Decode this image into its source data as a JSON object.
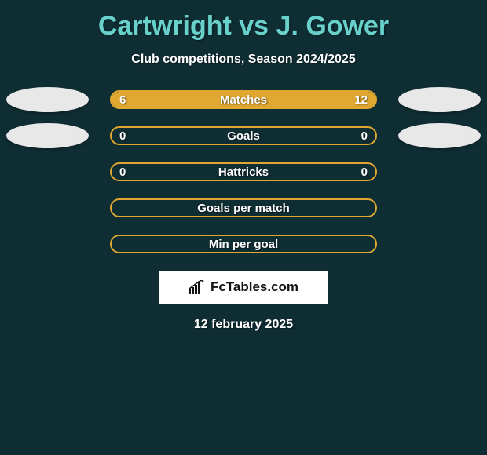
{
  "title": "Cartwright vs J. Gower",
  "subtitle": "Club competitions, Season 2024/2025",
  "date": "12 february 2025",
  "logo_text": "FcTables.com",
  "colors": {
    "background": "#0f2e34",
    "title": "#69d1cc",
    "bar_border": "#e0a830",
    "bar_fill": "#e0a830",
    "text": "#ffffff",
    "avatar": "#e8e8e8"
  },
  "stats": [
    {
      "label": "Matches",
      "left_value": "6",
      "right_value": "12",
      "left_pct": 33,
      "right_pct": 67,
      "show_left_avatar": true,
      "show_right_avatar": true
    },
    {
      "label": "Goals",
      "left_value": "0",
      "right_value": "0",
      "left_pct": 0,
      "right_pct": 0,
      "show_left_avatar": true,
      "show_right_avatar": true
    },
    {
      "label": "Hattricks",
      "left_value": "0",
      "right_value": "0",
      "left_pct": 0,
      "right_pct": 0,
      "show_left_avatar": false,
      "show_right_avatar": false
    },
    {
      "label": "Goals per match",
      "left_value": "",
      "right_value": "",
      "left_pct": 0,
      "right_pct": 0,
      "show_left_avatar": false,
      "show_right_avatar": false
    },
    {
      "label": "Min per goal",
      "left_value": "",
      "right_value": "",
      "left_pct": 0,
      "right_pct": 0,
      "show_left_avatar": false,
      "show_right_avatar": false
    }
  ]
}
